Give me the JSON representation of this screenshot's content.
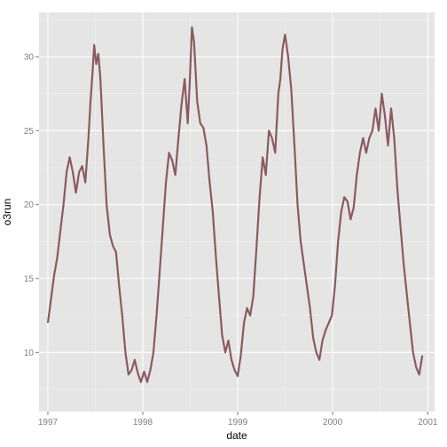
{
  "chart_data": {
    "type": "line",
    "xlabel": "date",
    "ylabel": "o3run",
    "x_ticks": [
      "1997",
      "1998",
      "1999",
      "2000",
      "2001"
    ],
    "y_ticks": [
      10,
      15,
      20,
      25,
      30
    ],
    "xlim": [
      "1996-11-28",
      "2001-01-27"
    ],
    "ylim": [
      6.0,
      33.0
    ],
    "grid": true,
    "legend": "none",
    "colors": {
      "panel_background": "#E5E5E5",
      "grid_major": "#FFFFFF",
      "grid_minor": "#F2F2F2",
      "line": "#8B5A5F",
      "tick_label": "#7F7F7F"
    },
    "series": [
      {
        "x": [
          "1997-01-01",
          "1997-01-13",
          "1997-01-25",
          "1997-02-06",
          "1997-02-18",
          "1997-03-02",
          "1997-03-14",
          "1997-03-26",
          "1997-04-07",
          "1997-04-19",
          "1997-05-01",
          "1997-05-13",
          "1997-05-25",
          "1997-06-06",
          "1997-06-14",
          "1997-06-22",
          "1997-06-28",
          "1997-07-06",
          "1997-07-14",
          "1997-07-22",
          "1997-08-03",
          "1997-08-15",
          "1997-08-27",
          "1997-09-08",
          "1997-09-20",
          "1997-10-02",
          "1997-10-14",
          "1997-10-26",
          "1997-11-07",
          "1997-11-19",
          "1997-12-01",
          "1997-12-13",
          "1997-12-25",
          "1998-01-06",
          "1998-01-18",
          "1998-01-30",
          "1998-02-11",
          "1998-02-23",
          "1998-03-07",
          "1998-03-19",
          "1998-03-31",
          "1998-04-12",
          "1998-04-24",
          "1998-05-06",
          "1998-05-18",
          "1998-05-30",
          "1998-06-11",
          "1998-06-23",
          "1998-07-01",
          "1998-07-09",
          "1998-07-17",
          "1998-07-29",
          "1998-08-10",
          "1998-08-22",
          "1998-09-03",
          "1998-09-15",
          "1998-09-27",
          "1998-10-09",
          "1998-10-21",
          "1998-11-02",
          "1998-11-14",
          "1998-11-26",
          "1998-12-08",
          "1998-12-20",
          "1999-01-01",
          "1999-01-13",
          "1999-01-25",
          "1999-02-06",
          "1999-02-18",
          "1999-03-02",
          "1999-03-14",
          "1999-03-26",
          "1999-04-07",
          "1999-04-19",
          "1999-05-01",
          "1999-05-13",
          "1999-05-25",
          "1999-06-06",
          "1999-06-14",
          "1999-06-22",
          "1999-07-02",
          "1999-07-14",
          "1999-07-26",
          "1999-08-07",
          "1999-08-19",
          "1999-08-31",
          "1999-09-12",
          "1999-09-24",
          "1999-10-06",
          "1999-10-18",
          "1999-10-30",
          "1999-11-11",
          "1999-11-23",
          "1999-12-05",
          "1999-12-17",
          "1999-12-29",
          "2000-01-10",
          "2000-01-22",
          "2000-02-03",
          "2000-02-15",
          "2000-02-27",
          "2000-03-10",
          "2000-03-22",
          "2000-04-03",
          "2000-04-15",
          "2000-04-27",
          "2000-05-09",
          "2000-05-21",
          "2000-06-02",
          "2000-06-14",
          "2000-06-26",
          "2000-07-08",
          "2000-07-20",
          "2000-08-01",
          "2000-08-13",
          "2000-08-25",
          "2000-09-06",
          "2000-09-18",
          "2000-09-30",
          "2000-10-12",
          "2000-10-24",
          "2000-11-05",
          "2000-11-17",
          "2000-11-29",
          "2000-12-11"
        ],
        "y": [
          12.0,
          13.6,
          15.2,
          16.4,
          18.2,
          20.0,
          22.2,
          23.2,
          22.2,
          20.8,
          22.2,
          22.6,
          21.5,
          24.5,
          27.0,
          29.0,
          30.8,
          29.5,
          30.2,
          28.5,
          24.0,
          20.0,
          18.0,
          17.2,
          16.8,
          14.5,
          12.5,
          10.0,
          8.5,
          8.8,
          9.5,
          8.6,
          8.0,
          8.7,
          8.0,
          8.8,
          10.0,
          12.5,
          15.5,
          18.5,
          21.5,
          23.5,
          23.0,
          22.0,
          24.5,
          26.8,
          28.5,
          25.5,
          28.5,
          32.0,
          31.0,
          27.0,
          25.5,
          25.2,
          24.0,
          21.5,
          19.5,
          16.5,
          13.8,
          11.2,
          10.0,
          10.8,
          9.5,
          8.8,
          8.4,
          9.8,
          12.0,
          13.0,
          12.5,
          13.8,
          17.0,
          20.5,
          23.2,
          22.0,
          25.0,
          24.5,
          23.5,
          27.5,
          28.5,
          30.5,
          31.5,
          30.0,
          27.8,
          24.0,
          20.0,
          17.5,
          16.0,
          14.5,
          13.0,
          11.0,
          10.0,
          9.5,
          10.8,
          11.5,
          12.0,
          12.5,
          14.5,
          17.5,
          19.5,
          20.5,
          20.2,
          19.0,
          19.8,
          22.0,
          23.5,
          24.5,
          23.5,
          24.5,
          25.0,
          26.5,
          25.0,
          27.5,
          26.0,
          24.0,
          26.5,
          24.5,
          21.0,
          18.5,
          16.0,
          14.0,
          12.0,
          10.0,
          9.0,
          8.5,
          9.8
        ]
      }
    ]
  }
}
